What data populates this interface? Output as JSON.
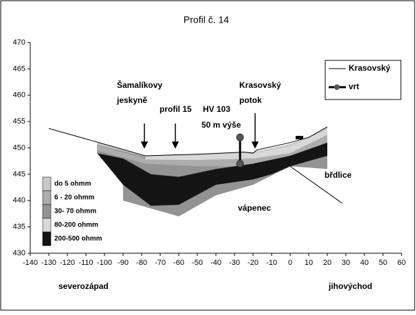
{
  "chart_data": {
    "type": "profile",
    "title": "Profil č. 14",
    "xlim": [
      -140,
      60
    ],
    "xticks": [
      -140,
      -130,
      -120,
      -110,
      -100,
      -90,
      -80,
      -70,
      -60,
      -50,
      -40,
      -30,
      -20,
      -10,
      0,
      10,
      20,
      30,
      40,
      50,
      60
    ],
    "ylim": [
      430,
      470
    ],
    "yticks": [
      430,
      435,
      440,
      445,
      450,
      455,
      460,
      465,
      470
    ],
    "x_axis_labels": [
      "severozápad",
      "jihovýchod"
    ],
    "annotations": [
      "Šamalíkovy",
      "jeskyně",
      "profil 15",
      "HV 103",
      "50 m výše",
      "Krasovský",
      "potok",
      "břdlice",
      "vápenec"
    ],
    "layers": [
      {
        "name": "do 5 ohmm",
        "color": "#c8c8c8",
        "x": [
          -104,
          -78,
          -50,
          -20,
          0,
          10,
          20,
          20,
          0,
          -20,
          -50,
          -78,
          -104
        ],
        "y": [
          451,
          448.5,
          448.8,
          449.2,
          450.7,
          452,
          454,
          453.5,
          450.3,
          449,
          448.6,
          448.3,
          450.6
        ]
      },
      {
        "name": "6 - 20 ohmm",
        "color": "#adadad",
        "x": [
          -104,
          -78,
          -50,
          -20,
          0,
          10,
          20,
          20,
          0,
          -20,
          -50,
          -78,
          -104
        ],
        "y": [
          450.5,
          448,
          448.5,
          449,
          450.3,
          451.5,
          453.5,
          450,
          447.5,
          446.5,
          446.5,
          447,
          449.5
        ]
      },
      {
        "name": "30- 70 ohmm",
        "color": "#939393",
        "x": [
          -104,
          -78,
          -50,
          -20,
          0,
          10,
          20,
          20,
          0,
          -20,
          -40,
          -60,
          -90,
          -90,
          -104
        ],
        "y": [
          451,
          448.5,
          448.8,
          449.2,
          450.7,
          452,
          454,
          446,
          446.5,
          443,
          441,
          437,
          440,
          448,
          449
        ]
      },
      {
        "name": "80-200 ohmm",
        "color": "#d8d8d8",
        "x": [
          -78,
          -50,
          -20,
          0,
          10,
          20,
          20,
          0,
          -20,
          -50,
          -78
        ],
        "y": [
          448.5,
          448.8,
          449.2,
          450.7,
          452,
          454,
          452.5,
          449,
          448,
          447.7,
          447.8
        ]
      },
      {
        "name": "200-500 ohmm",
        "color": "#141414",
        "x": [
          -104,
          -90,
          -75,
          -60,
          -40,
          -20,
          0,
          20,
          20,
          0,
          -10,
          -20,
          -40,
          -60,
          -75,
          -90
        ],
        "y": [
          449,
          448,
          445,
          444.5,
          446,
          447,
          448.5,
          451,
          448.5,
          446.5,
          445,
          444,
          443,
          439.2,
          439,
          443
        ]
      }
    ],
    "series": [
      {
        "name": "Krasovský",
        "color": "#000000",
        "x": [
          -130,
          -78,
          -50,
          -25,
          -20,
          -18,
          0,
          10,
          20
        ],
        "values": [
          453.7,
          448.5,
          448.8,
          449.2,
          449,
          449.6,
          451,
          452,
          454
        ]
      },
      {
        "name": "vrt",
        "color": "#555555",
        "x": [
          -27,
          -27
        ],
        "values": [
          452,
          447
        ]
      }
    ],
    "lines": [
      {
        "color": "#000000",
        "x": [
          0,
          28
        ],
        "values": [
          446.5,
          439.5
        ]
      }
    ]
  }
}
